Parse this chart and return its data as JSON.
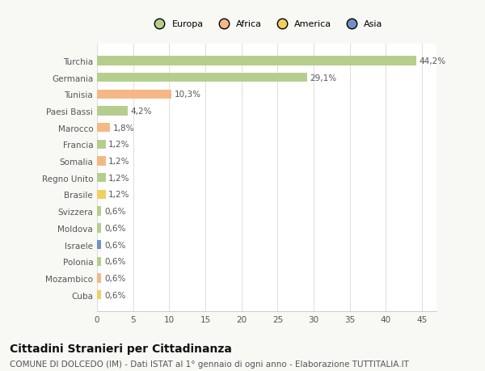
{
  "categories": [
    "Turchia",
    "Germania",
    "Tunisia",
    "Paesi Bassi",
    "Marocco",
    "Francia",
    "Somalia",
    "Regno Unito",
    "Brasile",
    "Svizzera",
    "Moldova",
    "Israele",
    "Polonia",
    "Mozambico",
    "Cuba"
  ],
  "values": [
    44.2,
    29.1,
    10.3,
    4.2,
    1.8,
    1.2,
    1.2,
    1.2,
    1.2,
    0.6,
    0.6,
    0.6,
    0.6,
    0.6,
    0.6
  ],
  "labels": [
    "44,2%",
    "29,1%",
    "10,3%",
    "4,2%",
    "1,8%",
    "1,2%",
    "1,2%",
    "1,2%",
    "1,2%",
    "0,6%",
    "0,6%",
    "0,6%",
    "0,6%",
    "0,6%",
    "0,6%"
  ],
  "colors": [
    "#b5ce8e",
    "#b5ce8e",
    "#f5b885",
    "#b5ce8e",
    "#f5b885",
    "#b5ce8e",
    "#f5b885",
    "#b5ce8e",
    "#f0d060",
    "#b5ce8e",
    "#b5ce8e",
    "#7090c8",
    "#b5ce8e",
    "#f5b885",
    "#f0d060"
  ],
  "legend": [
    {
      "label": "Europa",
      "color": "#b5ce8e"
    },
    {
      "label": "Africa",
      "color": "#f5b885"
    },
    {
      "label": "America",
      "color": "#f0d060"
    },
    {
      "label": "Asia",
      "color": "#7090c8"
    }
  ],
  "xlim": [
    0,
    47
  ],
  "xticks": [
    0,
    5,
    10,
    15,
    20,
    25,
    30,
    35,
    40,
    45
  ],
  "title": "Cittadini Stranieri per Cittadinanza",
  "subtitle": "COMUNE DI DOLCEDO (IM) - Dati ISTAT al 1° gennaio di ogni anno - Elaborazione TUTTITALIA.IT",
  "background_color": "#f8f8f5",
  "plot_bg_color": "#ffffff",
  "bar_height": 0.55,
  "label_fontsize": 7.5,
  "tick_fontsize": 7.5,
  "title_fontsize": 10,
  "subtitle_fontsize": 7.5
}
